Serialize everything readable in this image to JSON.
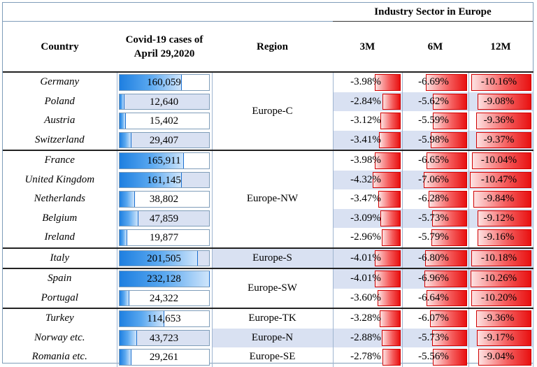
{
  "header": {
    "sector_title": "Industry Sector in Europe",
    "country": "Country",
    "cases_line1": "Covid-19 cases of",
    "cases_line2": "April 29,2020",
    "region": "Region",
    "m3": "3M",
    "m6": "6M",
    "m12": "12M"
  },
  "max_cases": 232128,
  "max_pct": 10.47,
  "rows": [
    {
      "country": "Germany",
      "cases": 160059,
      "cases_label": "160,059",
      "m3": -3.98,
      "m3_label": "-3.98%",
      "m6": -6.69,
      "m6_label": "-6.69%",
      "m12": -10.16,
      "m12_label": "-10.16%"
    },
    {
      "country": "Poland",
      "cases": 12640,
      "cases_label": "12,640",
      "m3": -2.84,
      "m3_label": "-2.84%",
      "m6": -5.62,
      "m6_label": "-5.62%",
      "m12": -9.08,
      "m12_label": "-9.08%"
    },
    {
      "country": "Austria",
      "cases": 15402,
      "cases_label": "15,402",
      "m3": -3.12,
      "m3_label": "-3.12%",
      "m6": -5.59,
      "m6_label": "-5.59%",
      "m12": -9.36,
      "m12_label": "-9.36%"
    },
    {
      "country": "Switzerland",
      "cases": 29407,
      "cases_label": "29,407",
      "m3": -3.41,
      "m3_label": "-3.41%",
      "m6": -5.98,
      "m6_label": "-5.98%",
      "m12": -9.37,
      "m12_label": "-9.37%"
    },
    {
      "country": "France",
      "cases": 165911,
      "cases_label": "165,911",
      "m3": -3.98,
      "m3_label": "-3.98%",
      "m6": -6.65,
      "m6_label": "-6.65%",
      "m12": -10.04,
      "m12_label": "-10.04%"
    },
    {
      "country": "United Kingdom",
      "cases": 161145,
      "cases_label": "161,145",
      "m3": -4.32,
      "m3_label": "-4.32%",
      "m6": -7.06,
      "m6_label": "-7.06%",
      "m12": -10.47,
      "m12_label": "-10.47%"
    },
    {
      "country": "Netherlands",
      "cases": 38802,
      "cases_label": "38,802",
      "m3": -3.47,
      "m3_label": "-3.47%",
      "m6": -6.28,
      "m6_label": "-6.28%",
      "m12": -9.84,
      "m12_label": "-9.84%"
    },
    {
      "country": "Belgium",
      "cases": 47859,
      "cases_label": "47,859",
      "m3": -3.09,
      "m3_label": "-3.09%",
      "m6": -5.73,
      "m6_label": "-5.73%",
      "m12": -9.12,
      "m12_label": "-9.12%"
    },
    {
      "country": "Ireland",
      "cases": 19877,
      "cases_label": "19,877",
      "m3": -2.96,
      "m3_label": "-2.96%",
      "m6": -5.79,
      "m6_label": "-5.79%",
      "m12": -9.16,
      "m12_label": "-9.16%"
    },
    {
      "country": "Italy",
      "cases": 201505,
      "cases_label": "201,505",
      "m3": -4.01,
      "m3_label": "-4.01%",
      "m6": -6.8,
      "m6_label": "-6.80%",
      "m12": -10.18,
      "m12_label": "-10.18%"
    },
    {
      "country": "Spain",
      "cases": 232128,
      "cases_label": "232,128",
      "m3": -4.01,
      "m3_label": "-4.01%",
      "m6": -6.96,
      "m6_label": "-6.96%",
      "m12": -10.26,
      "m12_label": "-10.26%"
    },
    {
      "country": "Portugal",
      "cases": 24322,
      "cases_label": "24,322",
      "m3": -3.6,
      "m3_label": "-3.60%",
      "m6": -6.64,
      "m6_label": "-6.64%",
      "m12": -10.2,
      "m12_label": "-10.20%"
    },
    {
      "country": "Turkey",
      "cases": 114653,
      "cases_label": "114,653",
      "m3": -3.28,
      "m3_label": "-3.28%",
      "m6": -6.07,
      "m6_label": "-6.07%",
      "m12": -9.36,
      "m12_label": "-9.36%"
    },
    {
      "country": "Norway etc.",
      "cases": 43723,
      "cases_label": "43,723",
      "m3": -2.88,
      "m3_label": "-2.88%",
      "m6": -5.73,
      "m6_label": "-5.73%",
      "m12": -9.17,
      "m12_label": "-9.17%"
    },
    {
      "country": "Romania etc.",
      "cases": 29261,
      "cases_label": "29,261",
      "m3": -2.78,
      "m3_label": "-2.78%",
      "m6": -5.56,
      "m6_label": "-5.56%",
      "m12": -9.04,
      "m12_label": "-9.04%"
    }
  ],
  "regions": [
    {
      "label": "Europe-C",
      "rows": [
        0,
        1,
        2,
        3
      ]
    },
    {
      "label": "Europe-NW",
      "rows": [
        4,
        5,
        6,
        7,
        8
      ]
    },
    {
      "label": "Europe-S",
      "rows": [
        9
      ]
    },
    {
      "label": "Europe-SW",
      "rows": [
        10,
        11
      ]
    },
    {
      "label": "Europe-TK",
      "rows": [
        12
      ]
    },
    {
      "label": "Europe-N",
      "rows": [
        13
      ]
    },
    {
      "label": "Europe-SE",
      "rows": [
        14
      ]
    }
  ],
  "colors": {
    "cases_bar": "#1e7fe0",
    "sector_bar": "#e81010",
    "highlight_row": "#d9e1f2"
  }
}
